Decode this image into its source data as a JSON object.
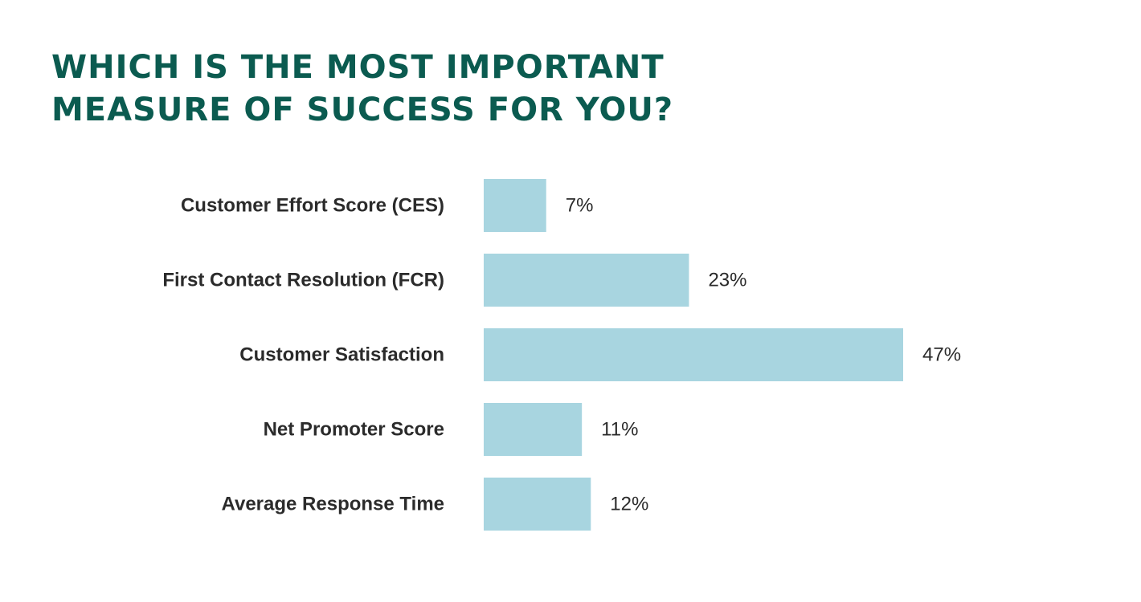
{
  "title": {
    "line1": "WHICH IS THE MOST IMPORTANT",
    "line2": "MEASURE OF SUCCESS FOR YOU?"
  },
  "colors": {
    "title": "#0b5b50",
    "bar": "#a8d5e0",
    "text": "#2b2b2b"
  },
  "chart_data": {
    "type": "bar",
    "orientation": "horizontal",
    "title": "WHICH IS THE MOST IMPORTANT MEASURE OF SUCCESS FOR YOU?",
    "categories": [
      "Customer Effort Score (CES)",
      "First Contact Resolution (FCR)",
      "Customer Satisfaction",
      "Net Promoter Score",
      "Average Response Time"
    ],
    "values": [
      7,
      23,
      47,
      11,
      12
    ],
    "value_labels": [
      "7%",
      "23%",
      "47%",
      "11%",
      "12%"
    ],
    "unit": "%",
    "xlim": [
      0,
      47
    ],
    "grid": false,
    "legend": "none"
  }
}
